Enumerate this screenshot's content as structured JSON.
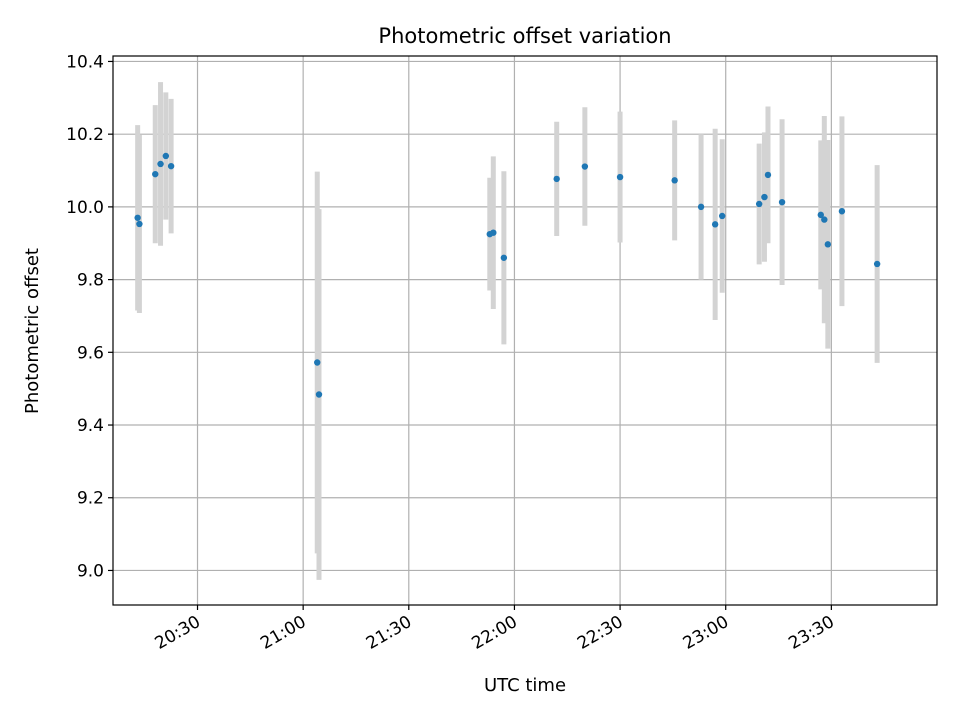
{
  "chart_data": {
    "type": "scatter",
    "title": "Photometric offset variation",
    "xlabel": "UTC time",
    "ylabel": "Photometric offset",
    "x_tick_labels": [
      "20:30",
      "21:00",
      "21:30",
      "22:00",
      "22:30",
      "23:00",
      "23:30"
    ],
    "y_tick_labels": [
      "9.0",
      "9.2",
      "9.4",
      "9.6",
      "9.8",
      "10.0",
      "10.2",
      "10.4"
    ],
    "xlim": [
      "20:06",
      "00:00"
    ],
    "ylim": [
      8.905,
      10.415
    ],
    "grid": true,
    "marker_color": "#1f77b4",
    "errorbar_color": "#d3d3d3",
    "points": [
      {
        "x": "20:13:00",
        "y": 9.97,
        "err": 0.255
      },
      {
        "x": "20:13:30",
        "y": 9.953,
        "err": 0.245
      },
      {
        "x": "20:18:00",
        "y": 10.09,
        "err": 0.19
      },
      {
        "x": "20:19:30",
        "y": 10.118,
        "err": 0.225
      },
      {
        "x": "20:21:00",
        "y": 10.14,
        "err": 0.175
      },
      {
        "x": "20:22:30",
        "y": 10.112,
        "err": 0.185
      },
      {
        "x": "21:04:00",
        "y": 9.572,
        "err": 0.525
      },
      {
        "x": "21:04:30",
        "y": 9.484,
        "err": 0.51
      },
      {
        "x": "21:53:00",
        "y": 9.925,
        "err": 0.155
      },
      {
        "x": "21:54:00",
        "y": 9.929,
        "err": 0.21
      },
      {
        "x": "21:57:00",
        "y": 9.86,
        "err": 0.238
      },
      {
        "x": "22:12:00",
        "y": 10.077,
        "err": 0.157
      },
      {
        "x": "22:20:00",
        "y": 10.111,
        "err": 0.163
      },
      {
        "x": "22:30:00",
        "y": 10.082,
        "err": 0.18
      },
      {
        "x": "22:45:30",
        "y": 10.073,
        "err": 0.165
      },
      {
        "x": "22:53:00",
        "y": 10.0,
        "err": 0.2
      },
      {
        "x": "22:57:00",
        "y": 9.952,
        "err": 0.263
      },
      {
        "x": "22:59:00",
        "y": 9.975,
        "err": 0.211
      },
      {
        "x": "23:09:30",
        "y": 10.008,
        "err": 0.166
      },
      {
        "x": "23:11:00",
        "y": 10.027,
        "err": 0.178
      },
      {
        "x": "23:12:00",
        "y": 10.088,
        "err": 0.188
      },
      {
        "x": "23:16:00",
        "y": 10.013,
        "err": 0.228
      },
      {
        "x": "23:27:00",
        "y": 9.978,
        "err": 0.205
      },
      {
        "x": "23:28:00",
        "y": 9.965,
        "err": 0.285
      },
      {
        "x": "23:29:00",
        "y": 9.897,
        "err": 0.287
      },
      {
        "x": "23:33:00",
        "y": 9.988,
        "err": 0.261
      },
      {
        "x": "23:43:00",
        "y": 9.843,
        "err": 0.272
      }
    ]
  }
}
